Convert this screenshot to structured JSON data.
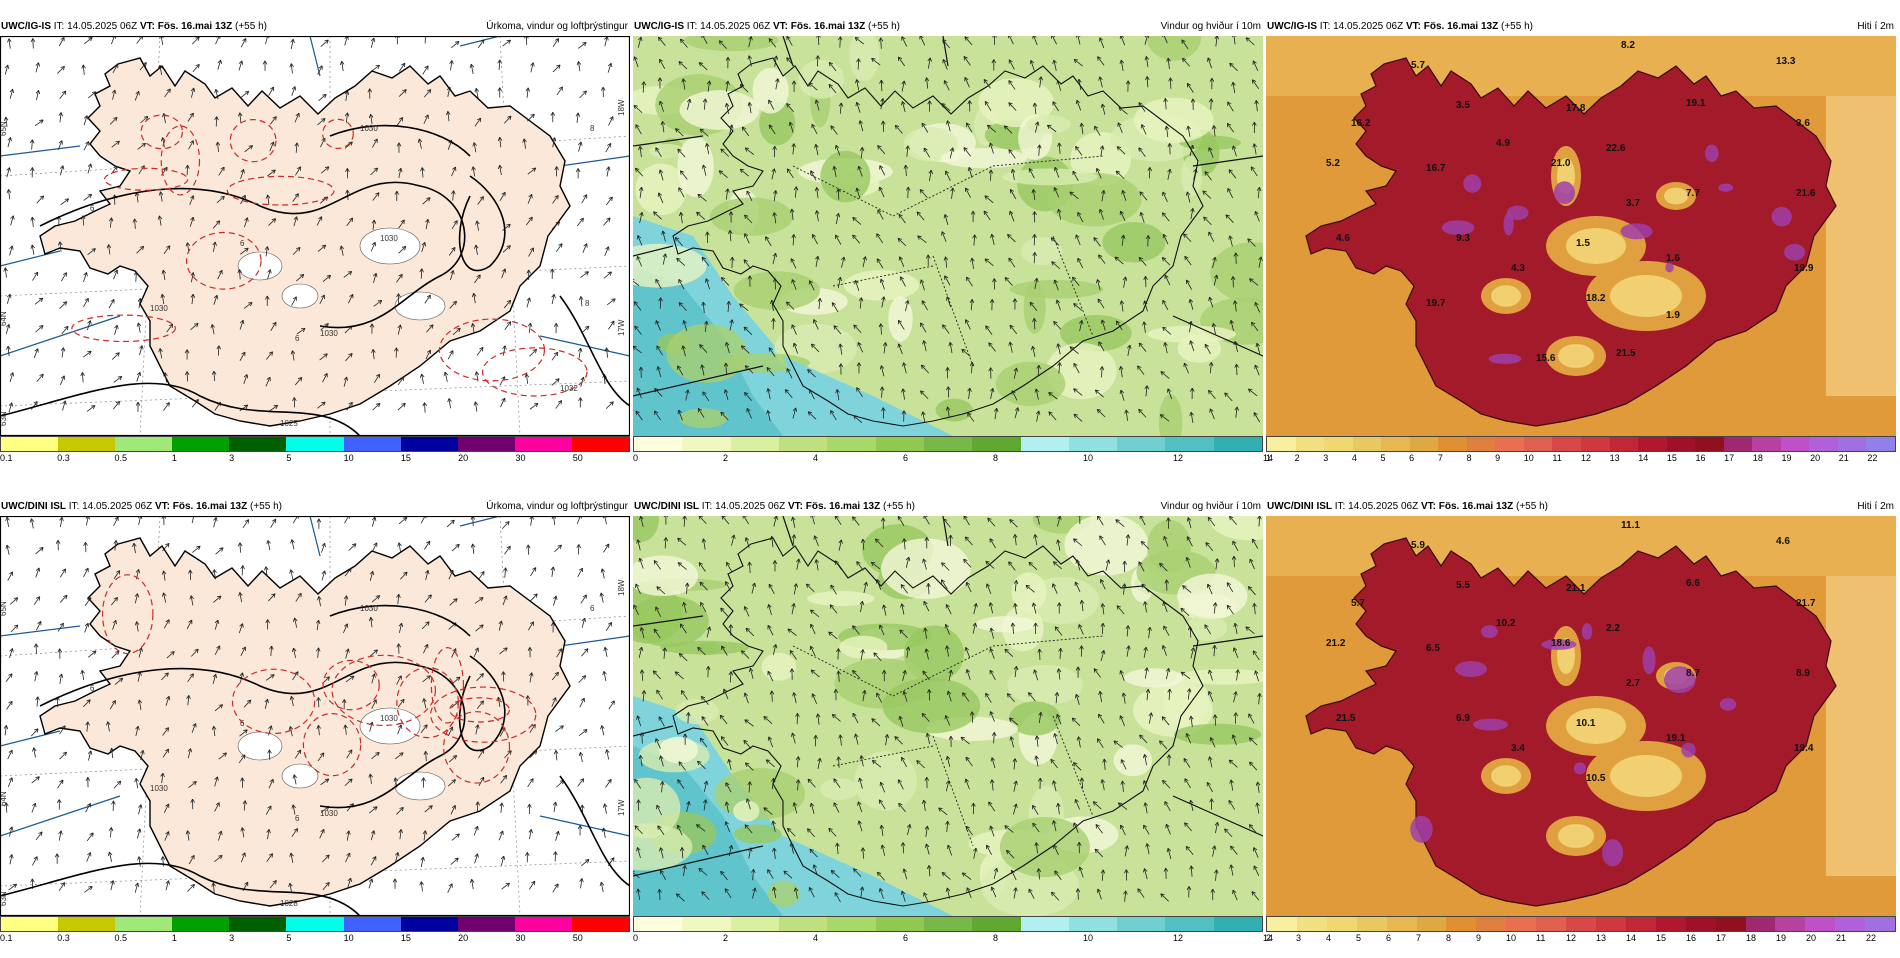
{
  "panels": [
    {
      "id": "p1",
      "kind": "precip",
      "model": "UWC/IG-IS",
      "it": "IT: 14.05.2025 06Z",
      "vt": "VT: Fös. 16.mai 13Z",
      "lead": "(+55 h)",
      "title": "Úrkoma, vindur og loftþrýstingur",
      "isobars": [
        "1030",
        "1030",
        "1030",
        "1030",
        "1025",
        "1032"
      ],
      "temps_labels": [
        "6",
        "6",
        "6",
        "8",
        "8"
      ],
      "lat_labels": [
        "65N",
        "64N",
        "63N"
      ],
      "lon_labels": [
        "18W",
        "17W"
      ],
      "colorbar": {
        "colors": [
          "#ffff80",
          "#c8c800",
          "#a0e878",
          "#00a000",
          "#006000",
          "#00ffe8",
          "#4060ff",
          "#0000a0",
          "#700070",
          "#ff00a0",
          "#ff0000"
        ],
        "ticks": [
          "0.1",
          "0.3",
          "0.5",
          "1",
          "3",
          "5",
          "10",
          "15",
          "20",
          "30",
          "50"
        ]
      }
    },
    {
      "id": "p2",
      "kind": "wind",
      "model": "UWC/IG-IS",
      "it": "IT: 14.05.2025 06Z",
      "vt": "VT: Fös. 16.mai 13Z",
      "lead": "(+55 h)",
      "title": "Vindur og hviður í 10m",
      "colorbar": {
        "colors": [
          "#ffffe0",
          "#f0f8c0",
          "#d8f0a0",
          "#c0e080",
          "#a8d868",
          "#90c850",
          "#78b848",
          "#60a830",
          "#b0f0f0",
          "#90e0e0",
          "#70d0d0",
          "#50c0c0",
          "#30b0b0"
        ],
        "ticks": [
          "0",
          "2",
          "4",
          "6",
          "8",
          "10",
          "12",
          "14"
        ]
      }
    },
    {
      "id": "p3",
      "kind": "temp",
      "model": "UWC/IG-IS",
      "it": "IT: 14.05.2025 06Z",
      "vt": "VT: Fös. 16.mai 13Z",
      "lead": "(+55 h)",
      "title": "Hiti í 2m",
      "values": [
        "8.2",
        "13.3",
        "5.7",
        "3.5",
        "19.1",
        "16.2",
        "4.9",
        "17.8",
        "3.6",
        "5.2",
        "16.7",
        "21.0",
        "22.6",
        "7.7",
        "21.6",
        "3.7",
        "4.6",
        "9.3",
        "1.5",
        "1.6",
        "19.9",
        "4.3",
        "18.2",
        "19.7",
        "1.9",
        "15.6",
        "21.5"
      ],
      "colorbar": {
        "colors": [
          "#f8f0a0",
          "#f0e080",
          "#f0d870",
          "#e8c860",
          "#e8b850",
          "#e0a840",
          "#e09030",
          "#e08040",
          "#e87050",
          "#e06050",
          "#d84848",
          "#d03840",
          "#c02838",
          "#b01830",
          "#a01028",
          "#901020",
          "#a02870",
          "#b840a0",
          "#c050c8",
          "#b060d8",
          "#a070e0",
          "#9080e8"
        ],
        "ticks": [
          "1",
          "2",
          "3",
          "4",
          "5",
          "6",
          "7",
          "8",
          "9",
          "10",
          "11",
          "12",
          "13",
          "14",
          "15",
          "16",
          "17",
          "18",
          "19",
          "20",
          "21",
          "22"
        ]
      }
    },
    {
      "id": "p4",
      "kind": "precip",
      "model": "UWC/DINI ISL",
      "it": "IT: 14.05.2025 06Z",
      "vt": "VT: Fös. 16.mai 13Z",
      "lead": "(+55 h)",
      "title": "Úrkoma, vindur og loftþrýstingur",
      "isobars": [
        "1030",
        "1030",
        "1030",
        "1030",
        "1028"
      ],
      "temps_labels": [
        "6",
        "6",
        "6",
        "6"
      ],
      "lat_labels": [
        "65N",
        "64N",
        "63N"
      ],
      "lon_labels": [
        "18W",
        "17W"
      ],
      "colorbar": {
        "colors": [
          "#ffff80",
          "#c8c800",
          "#a0e878",
          "#00a000",
          "#006000",
          "#00ffe8",
          "#4060ff",
          "#0000a0",
          "#700070",
          "#ff00a0",
          "#ff0000"
        ],
        "ticks": [
          "0.1",
          "0.3",
          "0.5",
          "1",
          "3",
          "5",
          "10",
          "15",
          "20",
          "30",
          "50"
        ]
      }
    },
    {
      "id": "p5",
      "kind": "wind",
      "model": "UWC/DINI ISL",
      "it": "IT: 14.05.2025 06Z",
      "vt": "VT: Fös. 16.mai 13Z",
      "lead": "(+55 h)",
      "title": "Vindur og hviður í 10m",
      "colorbar": {
        "colors": [
          "#ffffe0",
          "#f0f8c0",
          "#d8f0a0",
          "#c0e080",
          "#a8d868",
          "#90c850",
          "#78b848",
          "#60a830",
          "#b0f0f0",
          "#90e0e0",
          "#70d0d0",
          "#50c0c0",
          "#30b0b0"
        ],
        "ticks": [
          "0",
          "2",
          "4",
          "6",
          "8",
          "10",
          "12",
          "14"
        ]
      }
    },
    {
      "id": "p6",
      "kind": "temp",
      "model": "UWC/DINI ISL",
      "it": "IT: 14.05.2025 06Z",
      "vt": "VT: Fös. 16.mai 13Z",
      "lead": "(+55 h)",
      "title": "Hiti í 2m",
      "values": [
        "11.1",
        "4.6",
        "5.9",
        "5.5",
        "6.6",
        "5.7",
        "10.2",
        "21.1",
        "21.7",
        "21.2",
        "6.5",
        "18.6",
        "2.2",
        "8.7",
        "8.9",
        "2.7",
        "21.5",
        "6.9",
        "10.1",
        "19.1",
        "19.4",
        "3.4",
        "10.5"
      ],
      "colorbar": {
        "colors": [
          "#f8f0a0",
          "#f0e080",
          "#f0d870",
          "#e8c860",
          "#e8b850",
          "#e0a840",
          "#e09030",
          "#e08040",
          "#e87050",
          "#e06050",
          "#d84848",
          "#d03840",
          "#c02838",
          "#b01830",
          "#a01028",
          "#901020",
          "#a02870",
          "#b840a0",
          "#c050c8",
          "#b060d8",
          "#a070e0"
        ],
        "ticks": [
          "2",
          "3",
          "4",
          "5",
          "6",
          "7",
          "8",
          "9",
          "10",
          "11",
          "12",
          "13",
          "14",
          "15",
          "16",
          "17",
          "18",
          "19",
          "20",
          "21",
          "22"
        ]
      }
    }
  ]
}
